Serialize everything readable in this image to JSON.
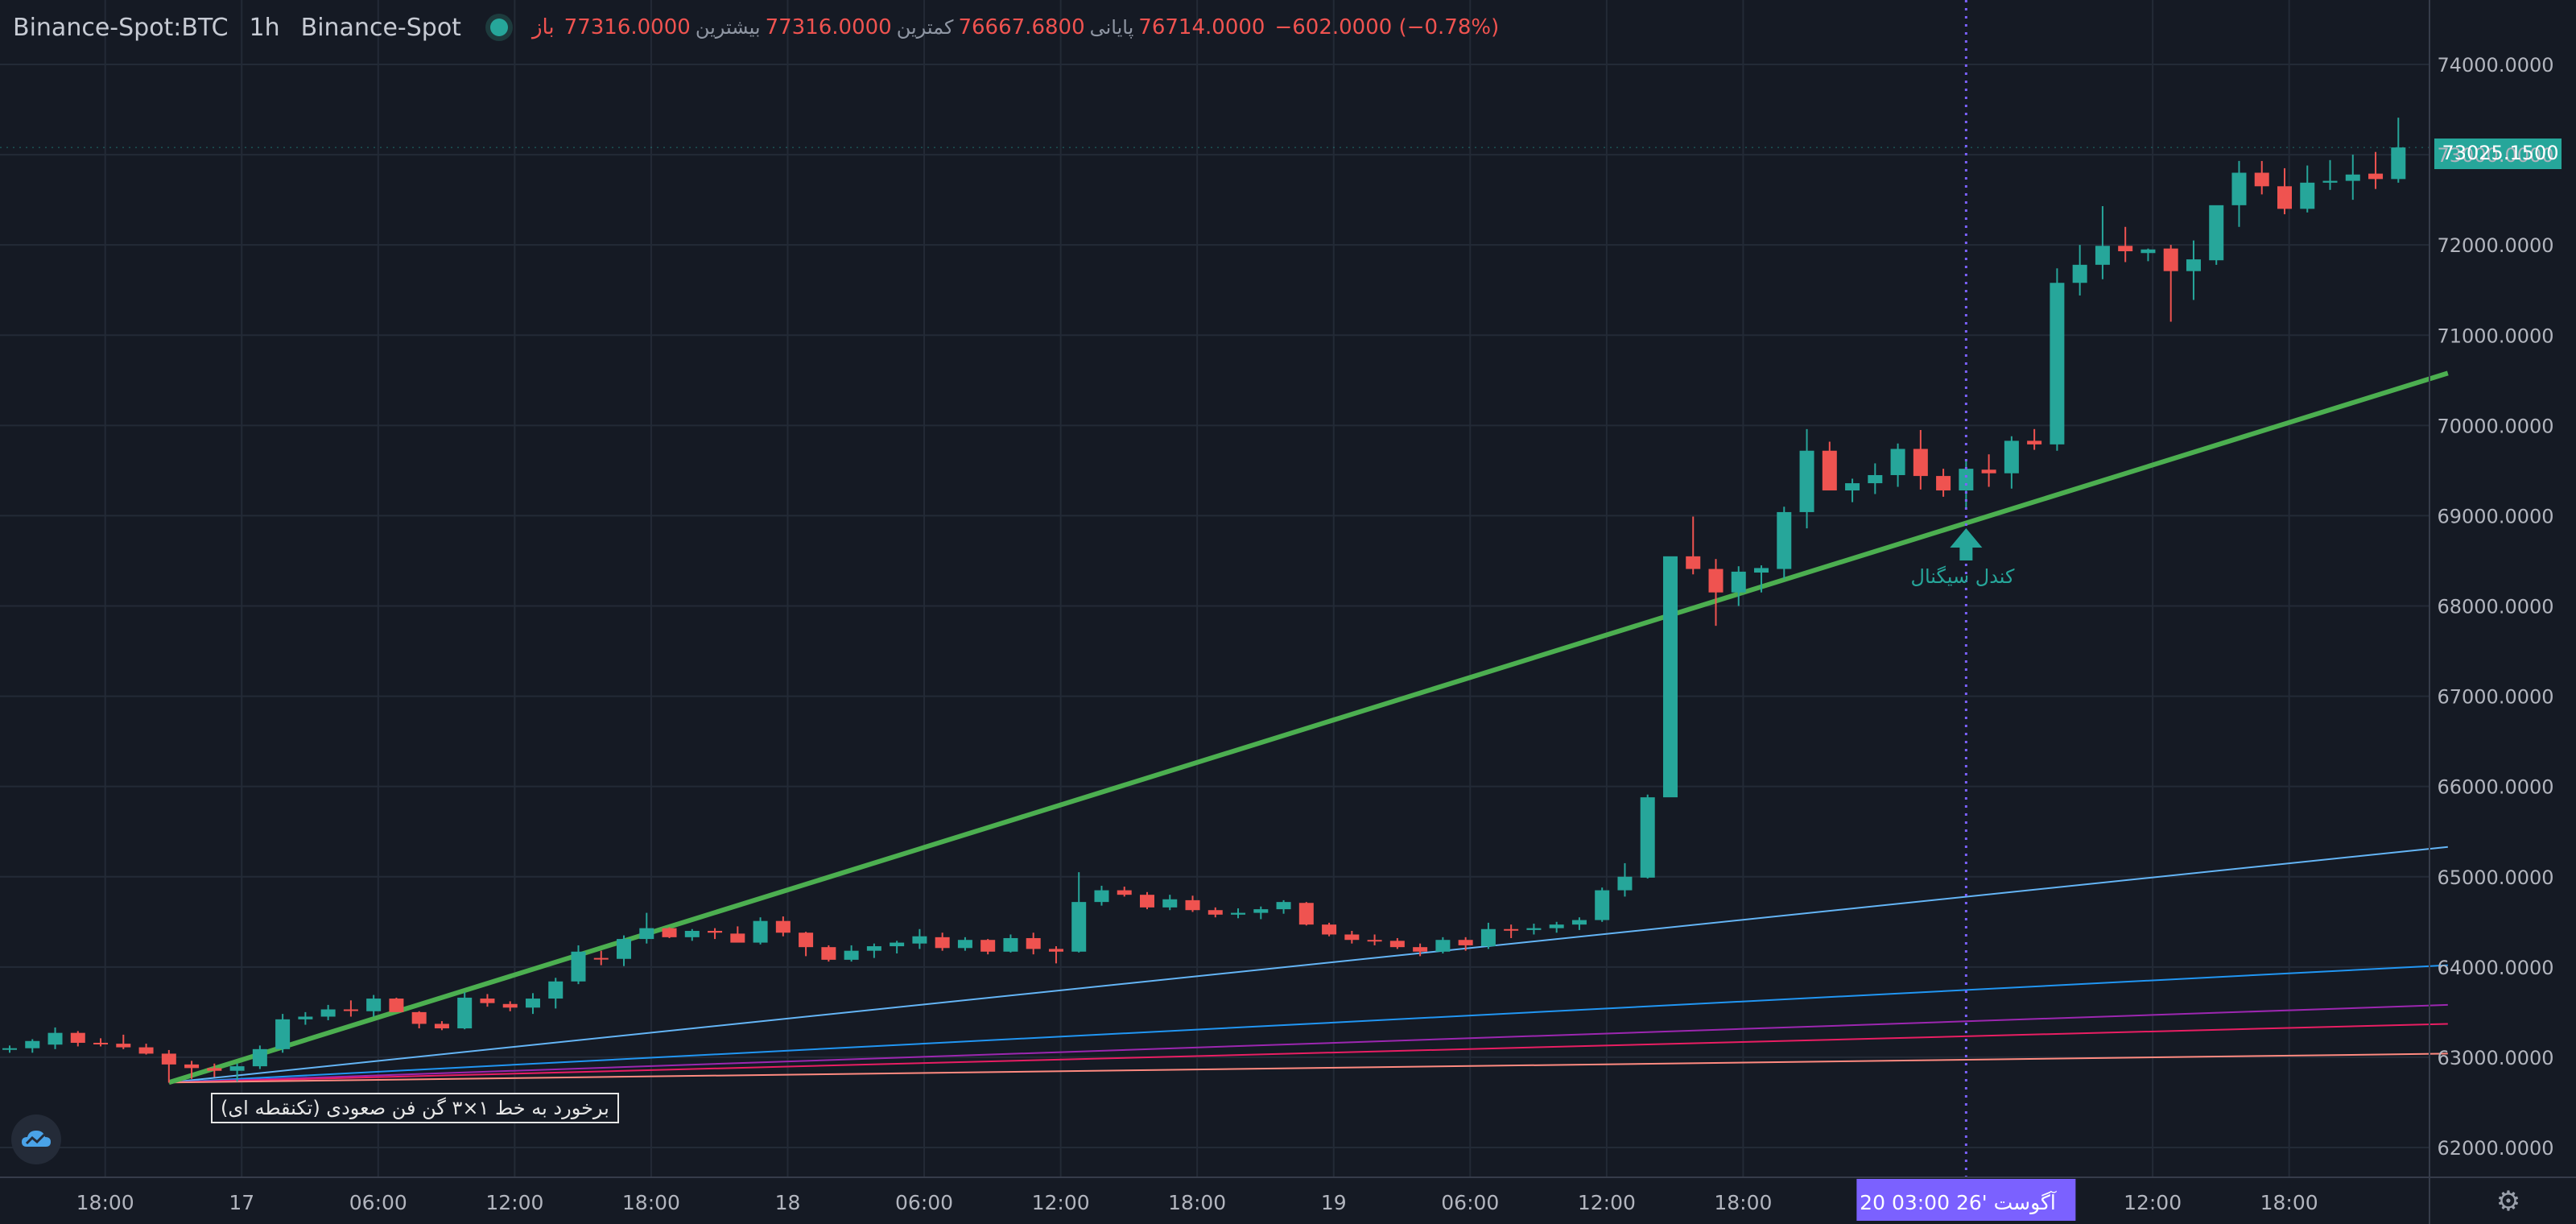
{
  "header": {
    "symbol": "Binance-Spot:BTC",
    "interval": "1h",
    "exchange": "Binance-Spot",
    "open_label": "باز",
    "open": "77316.0000",
    "high_label": "بیشترین",
    "high": "77316.0000",
    "low_label": "کمترین",
    "low": "76667.6800",
    "close_label": "پایانی",
    "close": "76714.0000",
    "change": "−602.0000 (−0.78%)"
  },
  "annotations": {
    "signal_label": "کندل سیگنال",
    "box_label": "برخورد به خط ۱×۳ گن فن صعودی (تکنقطه ای)"
  },
  "crosshair_label": "20 آگوست '26  03:00",
  "price_tag": "73025.1500",
  "colors": {
    "up": "#26a69a",
    "down": "#ef5350",
    "fan_main": "#4caf50",
    "fan_lines": [
      "#64b5f6",
      "#2196f3",
      "#9c27b0",
      "#e91e63",
      "#ff8a80"
    ],
    "crosshair": "#7b61ff",
    "background": "#151a24"
  },
  "chart_data": {
    "type": "candlestick",
    "interval": "1h",
    "ylim": [
      61600,
      74500
    ],
    "y_ticks": [
      "74000.0000",
      "73000.0000",
      "72000.0000",
      "71000.0000",
      "70000.0000",
      "69000.0000",
      "68000.0000",
      "67000.0000",
      "66000.0000",
      "65000.0000",
      "64000.0000",
      "63000.0000",
      "62000.0000"
    ],
    "x_ticks": [
      {
        "i": 4.2,
        "label": "18:00"
      },
      {
        "i": 10.2,
        "label": "17"
      },
      {
        "i": 16.2,
        "label": "06:00"
      },
      {
        "i": 22.2,
        "label": "12:00"
      },
      {
        "i": 28.2,
        "label": "18:00"
      },
      {
        "i": 34.2,
        "label": "18"
      },
      {
        "i": 40.2,
        "label": "06:00"
      },
      {
        "i": 46.2,
        "label": "12:00"
      },
      {
        "i": 52.2,
        "label": "18:00"
      },
      {
        "i": 58.2,
        "label": "19"
      },
      {
        "i": 64.2,
        "label": "06:00"
      },
      {
        "i": 70.2,
        "label": "12:00"
      },
      {
        "i": 76.2,
        "label": "18:00"
      },
      {
        "i": 94.2,
        "label": "12:00"
      },
      {
        "i": 100.2,
        "label": "18:00"
      }
    ],
    "candles": [
      [
        63090,
        63130,
        63050,
        63100
      ],
      [
        63100,
        63200,
        63050,
        63180
      ],
      [
        63140,
        63330,
        63090,
        63270
      ],
      [
        63270,
        63290,
        63120,
        63160
      ],
      [
        63160,
        63210,
        63120,
        63150
      ],
      [
        63150,
        63250,
        63090,
        63110
      ],
      [
        63110,
        63150,
        63030,
        63040
      ],
      [
        63040,
        63080,
        62720,
        62920
      ],
      [
        62920,
        62960,
        62760,
        62880
      ],
      [
        62880,
        62930,
        62780,
        62850
      ],
      [
        62850,
        62930,
        62730,
        62900
      ],
      [
        62900,
        63130,
        62870,
        63090
      ],
      [
        63090,
        63480,
        63050,
        63420
      ],
      [
        63420,
        63500,
        63360,
        63450
      ],
      [
        63450,
        63580,
        63410,
        63530
      ],
      [
        63530,
        63630,
        63450,
        63520
      ],
      [
        63510,
        63690,
        63450,
        63650
      ],
      [
        63650,
        63660,
        63500,
        63500
      ],
      [
        63500,
        63510,
        63320,
        63370
      ],
      [
        63370,
        63400,
        63300,
        63320
      ],
      [
        63320,
        63720,
        63310,
        63660
      ],
      [
        63650,
        63700,
        63560,
        63600
      ],
      [
        63590,
        63620,
        63510,
        63550
      ],
      [
        63550,
        63710,
        63480,
        63650
      ],
      [
        63650,
        63880,
        63540,
        63840
      ],
      [
        63840,
        64240,
        63810,
        64170
      ],
      [
        64100,
        64180,
        64020,
        64090
      ],
      [
        64090,
        64350,
        64010,
        64310
      ],
      [
        64310,
        64600,
        64260,
        64430
      ],
      [
        64430,
        64440,
        64320,
        64330
      ],
      [
        64330,
        64420,
        64290,
        64400
      ],
      [
        64400,
        64430,
        64310,
        64380
      ],
      [
        64370,
        64450,
        64280,
        64270
      ],
      [
        64270,
        64550,
        64250,
        64510
      ],
      [
        64510,
        64560,
        64340,
        64380
      ],
      [
        64380,
        64390,
        64120,
        64220
      ],
      [
        64220,
        64240,
        64060,
        64080
      ],
      [
        64080,
        64240,
        64060,
        64180
      ],
      [
        64180,
        64260,
        64100,
        64230
      ],
      [
        64230,
        64290,
        64150,
        64270
      ],
      [
        64260,
        64420,
        64200,
        64340
      ],
      [
        64330,
        64380,
        64180,
        64210
      ],
      [
        64210,
        64330,
        64180,
        64300
      ],
      [
        64300,
        64310,
        64140,
        64170
      ],
      [
        64170,
        64360,
        64160,
        64320
      ],
      [
        64320,
        64380,
        64140,
        64200
      ],
      [
        64200,
        64230,
        64040,
        64170
      ],
      [
        64170,
        65050,
        64160,
        64720
      ],
      [
        64720,
        64900,
        64680,
        64850
      ],
      [
        64850,
        64890,
        64780,
        64800
      ],
      [
        64800,
        64830,
        64640,
        64660
      ],
      [
        64660,
        64800,
        64630,
        64750
      ],
      [
        64740,
        64790,
        64610,
        64630
      ],
      [
        64630,
        64660,
        64550,
        64580
      ],
      [
        64580,
        64650,
        64540,
        64600
      ],
      [
        64600,
        64670,
        64530,
        64640
      ],
      [
        64640,
        64740,
        64590,
        64720
      ],
      [
        64710,
        64720,
        64460,
        64470
      ],
      [
        64470,
        64490,
        64340,
        64360
      ],
      [
        64360,
        64400,
        64260,
        64300
      ],
      [
        64300,
        64360,
        64240,
        64290
      ],
      [
        64290,
        64320,
        64200,
        64220
      ],
      [
        64220,
        64260,
        64120,
        64170
      ],
      [
        64170,
        64330,
        64150,
        64300
      ],
      [
        64300,
        64330,
        64180,
        64240
      ],
      [
        64230,
        64490,
        64200,
        64420
      ],
      [
        64420,
        64470,
        64320,
        64410
      ],
      [
        64410,
        64480,
        64360,
        64430
      ],
      [
        64430,
        64500,
        64380,
        64470
      ],
      [
        64470,
        64550,
        64410,
        64520
      ],
      [
        64520,
        64880,
        64500,
        64850
      ],
      [
        64850,
        65150,
        64780,
        65000
      ],
      [
        64990,
        65910,
        64980,
        65880
      ],
      [
        65880,
        68500,
        65900,
        68550
      ],
      [
        68550,
        68990,
        68350,
        68410
      ],
      [
        68410,
        68520,
        67780,
        68150
      ],
      [
        68150,
        68440,
        68000,
        68380
      ],
      [
        68370,
        68450,
        68150,
        68420
      ],
      [
        68410,
        69100,
        68300,
        69040
      ],
      [
        69040,
        69960,
        68860,
        69720
      ],
      [
        69720,
        69820,
        69290,
        69280
      ],
      [
        69280,
        69410,
        69150,
        69360
      ],
      [
        69360,
        69580,
        69240,
        69450
      ],
      [
        69450,
        69800,
        69320,
        69740
      ],
      [
        69740,
        69950,
        69290,
        69440
      ],
      [
        69440,
        69520,
        69210,
        69280
      ],
      [
        69280,
        69620,
        69090,
        69520
      ],
      [
        69510,
        69680,
        69320,
        69470
      ],
      [
        69470,
        69880,
        69300,
        69830
      ],
      [
        69830,
        69960,
        69730,
        69790
      ],
      [
        69790,
        71740,
        69720,
        71580
      ],
      [
        71580,
        72000,
        71440,
        71780
      ],
      [
        71780,
        72430,
        71620,
        71990
      ],
      [
        71990,
        72200,
        71810,
        71930
      ],
      [
        71910,
        71960,
        71820,
        71950
      ],
      [
        71960,
        72000,
        71150,
        71710
      ],
      [
        71710,
        72050,
        71390,
        71840
      ],
      [
        71830,
        72430,
        71780,
        72440
      ],
      [
        72440,
        72930,
        72200,
        72800
      ],
      [
        72800,
        72930,
        72560,
        72650
      ],
      [
        72650,
        72850,
        72340,
        72400
      ],
      [
        72400,
        72880,
        72360,
        72690
      ],
      [
        72690,
        72940,
        72610,
        72710
      ],
      [
        72710,
        73000,
        72500,
        72780
      ],
      [
        72790,
        73030,
        72620,
        72730
      ],
      [
        72730,
        73410,
        72690,
        73080
      ]
    ],
    "gann_fan": {
      "anchor": {
        "i": 7,
        "price": 62720
      },
      "main_1x3_end": {
        "i": 107,
        "price": 70580
      },
      "other_lines_end_prices": [
        65330,
        64020,
        63580,
        63370,
        63040
      ]
    },
    "signal_candle_index": 86
  }
}
